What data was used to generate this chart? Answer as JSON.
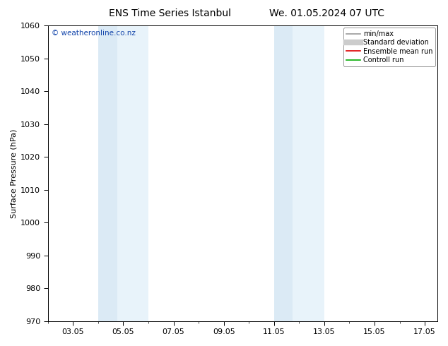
{
  "title_left": "ENS Time Series Istanbul",
  "title_right": "We. 01.05.2024 07 UTC",
  "ylabel": "Surface Pressure (hPa)",
  "ylim": [
    970,
    1060
  ],
  "yticks": [
    970,
    980,
    990,
    1000,
    1010,
    1020,
    1030,
    1040,
    1050,
    1060
  ],
  "xlim": [
    2.0,
    17.5
  ],
  "xtick_labels": [
    "03.05",
    "05.05",
    "07.05",
    "09.05",
    "11.05",
    "13.05",
    "15.05",
    "17.05"
  ],
  "xtick_positions": [
    3,
    5,
    7,
    9,
    11,
    13,
    15,
    17
  ],
  "shaded_bands": [
    {
      "xmin": 4.0,
      "xmax": 4.75,
      "color": "#dbeaf5"
    },
    {
      "xmin": 4.75,
      "xmax": 6.0,
      "color": "#e8f3fa"
    },
    {
      "xmin": 11.0,
      "xmax": 11.75,
      "color": "#dbeaf5"
    },
    {
      "xmin": 11.75,
      "xmax": 13.0,
      "color": "#e8f3fa"
    }
  ],
  "watermark": "© weatheronline.co.nz",
  "watermark_color": "#1144aa",
  "legend_entries": [
    {
      "label": "min/max",
      "color": "#999999",
      "lw": 1.2,
      "style": "line"
    },
    {
      "label": "Standard deviation",
      "color": "#cccccc",
      "lw": 6,
      "style": "thick"
    },
    {
      "label": "Ensemble mean run",
      "color": "#dd0000",
      "lw": 1.2,
      "style": "line"
    },
    {
      "label": "Controll run",
      "color": "#00aa00",
      "lw": 1.2,
      "style": "line"
    }
  ],
  "bg_color": "#ffffff",
  "title_fontsize": 10,
  "tick_fontsize": 8,
  "ylabel_fontsize": 8
}
